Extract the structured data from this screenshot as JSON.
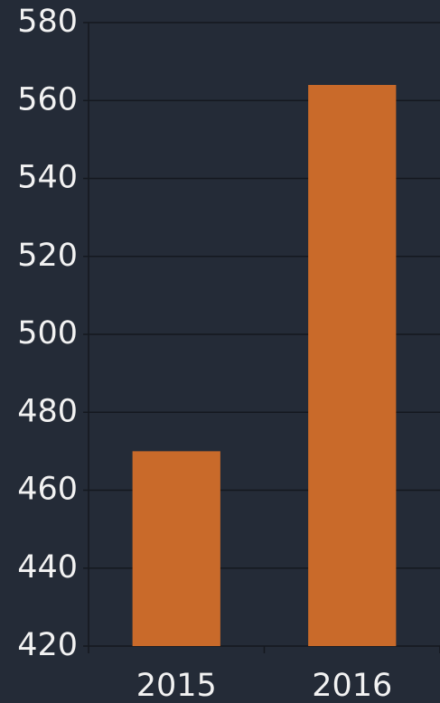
{
  "chart_data": {
    "type": "bar",
    "categories": [
      "2015",
      "2016"
    ],
    "values": [
      470,
      564
    ],
    "color": "#c96a2a",
    "ylim": [
      420,
      580
    ],
    "yticks": [
      420,
      440,
      460,
      480,
      500,
      520,
      540,
      560,
      580
    ],
    "grid": true
  }
}
